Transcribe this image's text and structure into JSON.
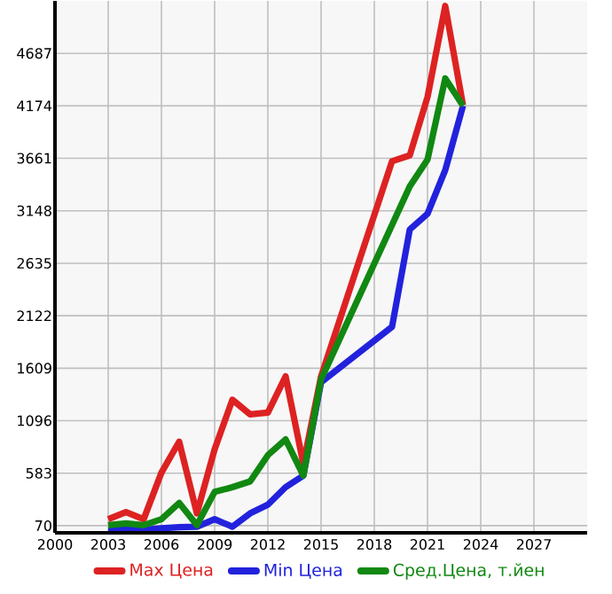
{
  "chart_data": {
    "type": "line",
    "xlim": [
      2000,
      2030
    ],
    "ylim": [
      0,
      5200
    ],
    "xticks": [
      2000,
      2003,
      2006,
      2009,
      2012,
      2015,
      2018,
      2021,
      2024,
      2027
    ],
    "yticks": [
      70,
      583,
      1096,
      1609,
      2122,
      2635,
      3148,
      3661,
      4174,
      4687
    ],
    "grid": true,
    "legend": "bottom",
    "marker": "none",
    "line_style": "solid",
    "series": [
      {
        "name": "Max Цена",
        "color": "#dd2222",
        "x": [
          2003,
          2004,
          2005,
          2006,
          2007,
          2008,
          2009,
          2010,
          2011,
          2012,
          2013,
          2014,
          2015,
          2019,
          2020,
          2021,
          2022,
          2023
        ],
        "values": [
          133,
          202,
          133,
          588,
          891,
          190,
          817,
          1301,
          1158,
          1176,
          1529,
          674,
          1529,
          3632,
          3690,
          4260,
          5150,
          4180
        ]
      },
      {
        "name": "Min Цена",
        "color": "#2222dd",
        "x": [
          2003,
          2004,
          2005,
          2006,
          2007,
          2008,
          2009,
          2010,
          2011,
          2012,
          2013,
          2014,
          2015,
          2019,
          2020,
          2021,
          2022,
          2023
        ],
        "values": [
          30,
          30,
          30,
          45,
          55,
          60,
          133,
          60,
          190,
          275,
          446,
          560,
          1472,
          2014,
          2965,
          3119,
          3546,
          4174
        ]
      },
      {
        "name": "Сред.Цена, т.йен",
        "color": "#118811",
        "x": [
          2003,
          2004,
          2005,
          2006,
          2007,
          2008,
          2009,
          2010,
          2011,
          2012,
          2013,
          2014,
          2015,
          2020,
          2021,
          2022,
          2023
        ],
        "values": [
          75,
          92,
          75,
          133,
          292,
          75,
          400,
          446,
          503,
          759,
          913,
          560,
          1500,
          3387,
          3649,
          4442,
          4174
        ]
      }
    ]
  }
}
